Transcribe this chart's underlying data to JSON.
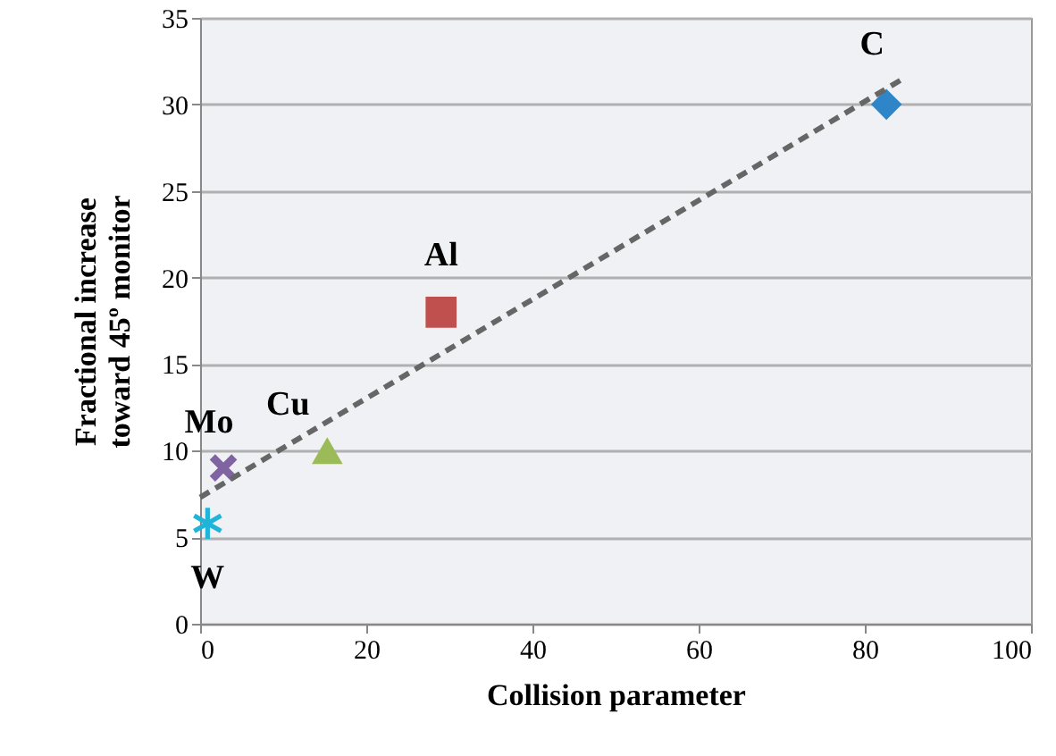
{
  "chart_data": {
    "type": "scatter",
    "xlabel": "Collision parameter",
    "ylabel": "Fractional increase toward 45º monitor",
    "xlim": [
      0,
      100
    ],
    "xticks": [
      0,
      20,
      40,
      60,
      80,
      100
    ],
    "ylim": [
      0,
      35
    ],
    "yticks": [
      0,
      5,
      10,
      15,
      20,
      25,
      30,
      35
    ],
    "grid": "y",
    "series": [
      {
        "name": "C",
        "color": "#2e86c8",
        "x": [
          82.6
        ],
        "values": [
          30
        ],
        "marker": "diamond"
      },
      {
        "name": "Al",
        "color": "#c0504d",
        "x": [
          29
        ],
        "values": [
          18
        ],
        "marker": "square"
      },
      {
        "name": "Cu",
        "color": "#9bbb59",
        "x": [
          15.3
        ],
        "values": [
          10
        ],
        "marker": "triangle"
      },
      {
        "name": "Mo",
        "color": "#8064a2",
        "x": [
          2.8
        ],
        "values": [
          9
        ],
        "marker": "cross"
      },
      {
        "name": "W",
        "color": "#1fb4d8",
        "x": [
          0.9
        ],
        "values": [
          5.8
        ],
        "marker": "star"
      },
      {
        "type": "line",
        "color": "#666666",
        "x": [
          0,
          84.3
        ],
        "values": [
          7.3,
          31.4
        ],
        "line_style": "dashed",
        "marker": "none"
      }
    ]
  }
}
